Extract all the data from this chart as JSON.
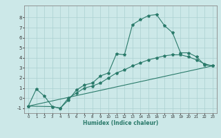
{
  "xlabel": "Humidex (Indice chaleur)",
  "bg_color": "#cce8e8",
  "grid_color": "#aad0d0",
  "line_color": "#2a7a6a",
  "xlim": [
    -0.5,
    23.5
  ],
  "ylim": [
    -1.5,
    9.2
  ],
  "xticks": [
    0,
    1,
    2,
    3,
    4,
    5,
    6,
    7,
    8,
    9,
    10,
    11,
    12,
    13,
    14,
    15,
    16,
    17,
    18,
    19,
    20,
    21,
    22,
    23
  ],
  "yticks": [
    -1,
    0,
    1,
    2,
    3,
    4,
    5,
    6,
    7,
    8
  ],
  "line1_x": [
    0,
    1,
    2,
    3,
    4,
    5,
    6,
    7,
    8,
    9,
    10,
    11,
    12,
    13,
    14,
    15,
    16,
    17,
    18,
    19,
    20,
    21,
    22,
    23
  ],
  "line1_y": [
    -0.8,
    0.9,
    0.2,
    -0.85,
    -1.0,
    -0.2,
    0.8,
    1.3,
    1.5,
    2.2,
    2.5,
    4.4,
    4.3,
    7.3,
    7.8,
    8.2,
    8.3,
    7.2,
    6.5,
    4.5,
    4.5,
    4.1,
    3.3,
    3.2
  ],
  "line2_x": [
    0,
    3,
    4,
    5,
    6,
    7,
    8,
    9,
    10,
    11,
    12,
    13,
    14,
    15,
    16,
    17,
    18,
    19,
    20,
    21,
    22,
    23
  ],
  "line2_y": [
    -0.8,
    -0.85,
    -1.0,
    0.0,
    0.5,
    1.0,
    1.2,
    1.5,
    2.0,
    2.5,
    2.8,
    3.2,
    3.5,
    3.8,
    4.0,
    4.2,
    4.3,
    4.3,
    4.1,
    3.8,
    3.4,
    3.2
  ],
  "line3_x": [
    0,
    23
  ],
  "line3_y": [
    -0.8,
    3.2
  ]
}
